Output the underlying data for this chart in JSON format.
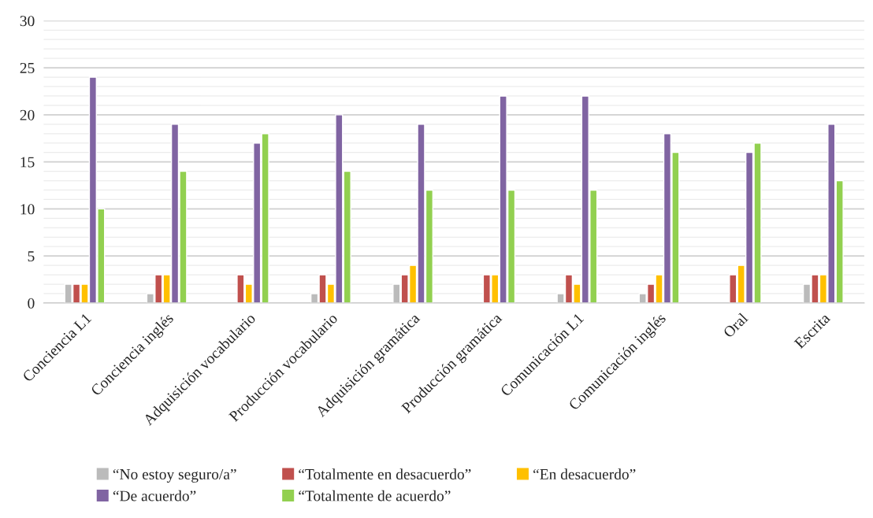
{
  "chart_data": {
    "type": "bar",
    "categories": [
      "Conciencia L1",
      "Conciencia inglés",
      "Adquisición vocabulario",
      "Producción vocabulario",
      "Adquisición gramática",
      "Producción gramática",
      "Comunicación L1",
      "Comunicación inglés",
      "Oral",
      "Escrita"
    ],
    "series": [
      {
        "name": "“No estoy seguro/a”",
        "color": "#bbbbbb",
        "values": [
          2,
          1,
          null,
          1,
          2,
          null,
          1,
          1,
          null,
          2
        ]
      },
      {
        "name": "“Totalmente en desacuerdo”",
        "color": "#c0504d",
        "values": [
          2,
          3,
          3,
          3,
          3,
          3,
          3,
          2,
          3,
          3
        ]
      },
      {
        "name": "“En desacuerdo”",
        "color": "#ffc000",
        "values": [
          2,
          3,
          2,
          2,
          4,
          3,
          2,
          3,
          4,
          3
        ]
      },
      {
        "name": "“De acuerdo”",
        "color": "#8064a2",
        "values": [
          24,
          19,
          17,
          20,
          19,
          22,
          22,
          18,
          16,
          19
        ]
      },
      {
        "name": "“Totalmente de acuerdo”",
        "color": "#92d050",
        "values": [
          10,
          14,
          18,
          14,
          12,
          12,
          12,
          16,
          17,
          13
        ]
      }
    ],
    "ylim": [
      0,
      30
    ],
    "yticks": [
      0,
      {
        "value": 1,
        "label": null
      },
      {
        "value": 2,
        "label": null
      },
      {
        "value": 3,
        "label": null
      },
      {
        "value": 4,
        "label": null
      },
      5,
      {
        "value": 6,
        "label": null
      },
      {
        "value": 7,
        "label": null
      },
      {
        "value": 8,
        "label": null
      },
      {
        "value": 9,
        "label": null
      },
      10,
      {
        "value": 11,
        "label": null
      },
      {
        "value": 12,
        "label": null
      },
      {
        "value": 13,
        "label": null
      },
      {
        "value": 14,
        "label": null
      },
      15,
      {
        "value": 16,
        "label": null
      },
      {
        "value": 17,
        "label": null
      },
      {
        "value": 18,
        "label": null
      },
      {
        "value": 19,
        "label": null
      },
      20,
      {
        "value": 21,
        "label": null
      },
      {
        "value": 22,
        "label": null
      },
      {
        "value": 23,
        "label": null
      },
      {
        "value": 24,
        "label": null
      },
      25,
      {
        "value": 26,
        "label": null
      },
      {
        "value": 27,
        "label": null
      },
      {
        "value": 28,
        "label": null
      },
      {
        "value": 29,
        "label": null
      },
      30
    ],
    "grid": "y",
    "legend": "bottom"
  }
}
